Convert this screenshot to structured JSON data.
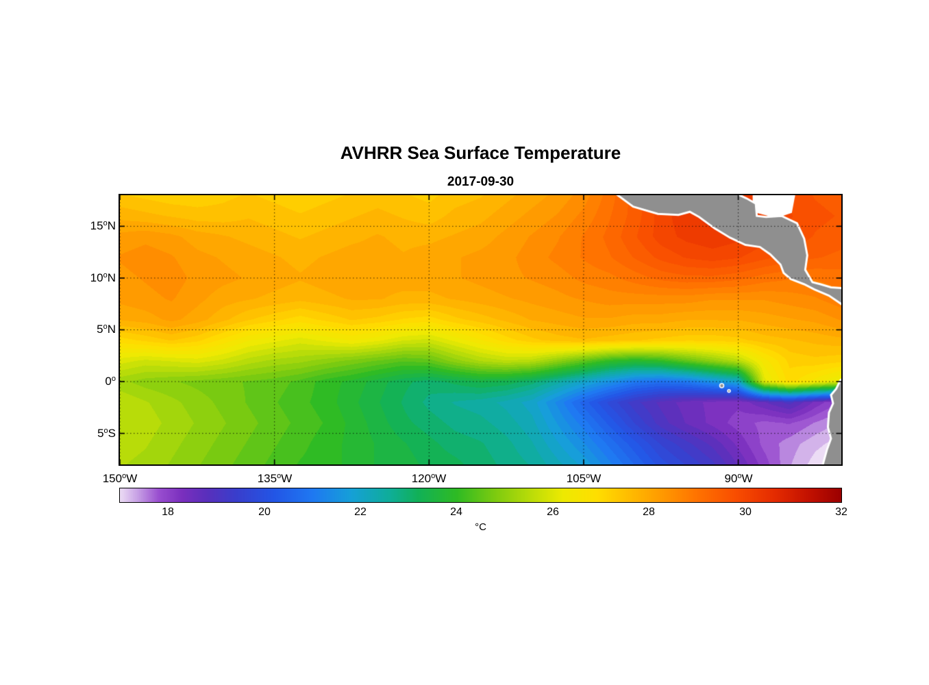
{
  "chart_data": {
    "type": "heatmap",
    "title": "AVHRR Sea Surface Temperature",
    "subtitle": "2017-09-30",
    "colorbar_label": "°C",
    "degree_glyph": "o",
    "lon_range": [
      -150,
      -80
    ],
    "lat_range": [
      -8,
      18
    ],
    "value_range": [
      17,
      32
    ],
    "x_ticks": [
      {
        "num": "150",
        "hem": "W",
        "lon": -150
      },
      {
        "num": "135",
        "hem": "W",
        "lon": -135
      },
      {
        "num": "120",
        "hem": "W",
        "lon": -120
      },
      {
        "num": "105",
        "hem": "W",
        "lon": -105
      },
      {
        "num": "90",
        "hem": "W",
        "lon": -90
      }
    ],
    "y_ticks": [
      {
        "num": "15",
        "hem": "N",
        "lat": 15
      },
      {
        "num": "10",
        "hem": "N",
        "lat": 10
      },
      {
        "num": "5",
        "hem": "N",
        "lat": 5
      },
      {
        "num": "0",
        "hem": "",
        "lat": 0
      },
      {
        "num": "5",
        "hem": "S",
        "lat": -5
      }
    ],
    "colorbar_ticks": [
      "18",
      "20",
      "22",
      "24",
      "26",
      "28",
      "30",
      "32"
    ],
    "colormap": [
      [
        17.0,
        "#ecdcf5"
      ],
      [
        17.35,
        "#c9a3e6"
      ],
      [
        17.8,
        "#9a4fd0"
      ],
      [
        18.3,
        "#7a2fbe"
      ],
      [
        18.8,
        "#5a30bc"
      ],
      [
        19.4,
        "#3a3ecc"
      ],
      [
        20.2,
        "#2356e6"
      ],
      [
        21.0,
        "#1f79f2"
      ],
      [
        21.8,
        "#16a0d8"
      ],
      [
        22.6,
        "#0fae9a"
      ],
      [
        23.2,
        "#12b158"
      ],
      [
        24.0,
        "#2fbb24"
      ],
      [
        24.8,
        "#7ecb10"
      ],
      [
        25.6,
        "#c0de08"
      ],
      [
        26.2,
        "#eeea02"
      ],
      [
        26.9,
        "#ffdf00"
      ],
      [
        27.6,
        "#ffbc00"
      ],
      [
        28.3,
        "#ff9800"
      ],
      [
        29.0,
        "#ff7300"
      ],
      [
        29.8,
        "#f94e00"
      ],
      [
        30.6,
        "#e52c00"
      ],
      [
        31.3,
        "#c41200"
      ],
      [
        32.0,
        "#9b0000"
      ]
    ],
    "grid": {
      "lats": [
        18,
        16,
        14,
        12,
        10,
        8,
        6,
        4,
        2,
        0,
        -2,
        -4,
        -6,
        -8
      ],
      "lons": [
        -150,
        -147.5,
        -145,
        -142.5,
        -140,
        -137.5,
        -135,
        -132.5,
        -130,
        -127.5,
        -125,
        -122.5,
        -120,
        -117.5,
        -115,
        -112.5,
        -110,
        -107.5,
        -105,
        -102.5,
        -100,
        -97.5,
        -95,
        -92.5,
        -90,
        -87.5,
        -85,
        -82.5,
        -80
      ],
      "values": [
        [
          27.4,
          27.3,
          27.2,
          27.2,
          27.3,
          27.4,
          27.3,
          27.2,
          27.3,
          27.4,
          27.5,
          27.4,
          27.3,
          27.5,
          27.6,
          27.8,
          28.0,
          28.2,
          28.5,
          29.0,
          29.5,
          30.0,
          30.2,
          30.5,
          30.3,
          30.0,
          29.8,
          29.6,
          29.5
        ],
        [
          27.8,
          27.7,
          27.6,
          27.5,
          27.5,
          27.6,
          27.5,
          27.4,
          27.5,
          27.6,
          27.7,
          27.6,
          27.5,
          27.7,
          27.8,
          28.0,
          28.2,
          28.4,
          28.7,
          29.1,
          29.5,
          30.0,
          30.3,
          30.5,
          30.4,
          30.1,
          29.9,
          29.7,
          29.6
        ],
        [
          28.2,
          28.3,
          28.2,
          28.0,
          27.9,
          27.8,
          27.7,
          27.6,
          27.7,
          27.8,
          27.9,
          27.8,
          27.8,
          27.9,
          28.0,
          28.2,
          28.4,
          28.6,
          28.9,
          29.2,
          29.6,
          30.0,
          30.2,
          30.3,
          30.2,
          30.0,
          29.8,
          29.6,
          29.5
        ],
        [
          28.4,
          28.5,
          28.4,
          28.2,
          28.1,
          28.0,
          27.9,
          27.8,
          27.9,
          28.0,
          28.0,
          27.9,
          28.0,
          28.1,
          28.2,
          28.3,
          28.5,
          28.7,
          28.9,
          29.1,
          29.4,
          29.7,
          29.9,
          30.0,
          29.9,
          29.7,
          29.5,
          29.4,
          29.3
        ],
        [
          28.3,
          28.4,
          28.5,
          28.3,
          28.2,
          28.1,
          28.0,
          27.9,
          28.0,
          28.1,
          28.0,
          28.0,
          28.0,
          28.1,
          28.2,
          28.3,
          28.4,
          28.5,
          28.7,
          28.8,
          29.0,
          29.2,
          29.3,
          29.3,
          29.2,
          29.0,
          28.9,
          28.9,
          29.0
        ],
        [
          28.2,
          28.3,
          28.4,
          28.2,
          28.0,
          27.9,
          27.8,
          27.7,
          27.8,
          27.9,
          27.9,
          27.8,
          27.8,
          27.9,
          28.0,
          28.1,
          28.2,
          28.3,
          28.4,
          28.5,
          28.5,
          28.5,
          28.5,
          28.4,
          28.4,
          28.4,
          28.5,
          28.6,
          28.8
        ],
        [
          27.9,
          28.0,
          28.2,
          28.0,
          27.7,
          27.4,
          27.2,
          27.0,
          27.2,
          27.4,
          27.3,
          27.1,
          27.0,
          27.3,
          27.5,
          27.7,
          27.9,
          28.0,
          28.1,
          28.1,
          28.0,
          28.0,
          27.9,
          27.9,
          27.9,
          28.0,
          28.1,
          28.2,
          28.4
        ],
        [
          27.0,
          27.2,
          27.4,
          27.2,
          26.8,
          26.4,
          26.2,
          26.0,
          26.2,
          26.4,
          26.2,
          25.9,
          25.8,
          26.2,
          26.6,
          27.0,
          27.3,
          27.5,
          27.6,
          27.5,
          27.4,
          27.3,
          27.2,
          27.2,
          27.3,
          27.5,
          27.6,
          27.7,
          27.8
        ],
        [
          26.0,
          25.8,
          25.9,
          26.0,
          25.8,
          25.5,
          25.3,
          25.2,
          25.0,
          24.8,
          24.6,
          24.4,
          24.5,
          25.0,
          25.4,
          25.6,
          25.5,
          25.0,
          24.5,
          24.0,
          23.8,
          24.0,
          24.5,
          25.0,
          25.5,
          26.5,
          27.2,
          27.3,
          27.2
        ],
        [
          25.2,
          25.0,
          24.9,
          24.8,
          24.7,
          24.6,
          24.5,
          24.3,
          24.0,
          23.8,
          23.5,
          23.2,
          23.0,
          23.2,
          23.4,
          23.3,
          23.0,
          22.5,
          22.0,
          21.5,
          21.0,
          20.8,
          21.0,
          21.5,
          22.0,
          26.0,
          27.0,
          26.5,
          26.0
        ],
        [
          25.6,
          25.4,
          25.2,
          25.0,
          24.8,
          24.6,
          24.4,
          24.2,
          24.0,
          23.7,
          23.4,
          23.1,
          22.8,
          22.6,
          22.5,
          22.3,
          22.0,
          21.3,
          20.5,
          19.8,
          19.2,
          18.8,
          18.5,
          18.3,
          18.2,
          18.6,
          19.0,
          18.3,
          17.8
        ],
        [
          25.6,
          25.5,
          25.3,
          25.1,
          24.9,
          24.7,
          24.5,
          24.3,
          24.1,
          23.8,
          23.5,
          23.2,
          23.0,
          22.8,
          22.7,
          22.5,
          22.2,
          21.6,
          21.0,
          20.3,
          19.6,
          19.0,
          18.6,
          18.3,
          18.0,
          17.8,
          17.9,
          17.6,
          17.3
        ],
        [
          25.5,
          25.4,
          25.2,
          25.0,
          24.8,
          24.6,
          24.4,
          24.2,
          24.0,
          23.8,
          23.6,
          23.4,
          23.2,
          23.0,
          22.9,
          22.7,
          22.4,
          21.9,
          21.4,
          20.8,
          20.2,
          19.6,
          19.2,
          18.8,
          18.3,
          17.8,
          17.5,
          17.2,
          17.0
        ],
        [
          25.4,
          25.3,
          25.1,
          24.9,
          24.7,
          24.5,
          24.3,
          24.1,
          24.0,
          23.8,
          23.6,
          23.5,
          23.3,
          23.2,
          23.0,
          22.8,
          22.6,
          22.2,
          21.8,
          21.2,
          20.6,
          20.0,
          19.6,
          19.2,
          18.6,
          18.0,
          17.4,
          17.0,
          16.8
        ]
      ]
    },
    "land": {
      "fill": "#8f8f8f",
      "coast": "#ffffff",
      "polygons": [
        {
          "name": "central-america",
          "points": [
            [
              -102.5,
              18.6
            ],
            [
              -100.2,
              16.9
            ],
            [
              -97.8,
              16.2
            ],
            [
              -95.8,
              16.1
            ],
            [
              -94.7,
              16.4
            ],
            [
              -93.8,
              15.9
            ],
            [
              -92.3,
              14.8
            ],
            [
              -90.8,
              13.9
            ],
            [
              -89.3,
              13.2
            ],
            [
              -87.9,
              13.0
            ],
            [
              -86.9,
              12.3
            ],
            [
              -85.9,
              11.3
            ],
            [
              -85.6,
              10.5
            ],
            [
              -84.9,
              9.9
            ],
            [
              -83.6,
              9.4
            ],
            [
              -82.6,
              8.9
            ],
            [
              -81.2,
              8.3
            ],
            [
              -80.3,
              7.7
            ],
            [
              -79.6,
              7.2
            ],
            [
              -79.6,
              9.0
            ],
            [
              -81.0,
              9.1
            ],
            [
              -82.0,
              9.4
            ],
            [
              -82.8,
              9.6
            ],
            [
              -83.5,
              10.8
            ],
            [
              -83.3,
              12.2
            ],
            [
              -83.6,
              13.8
            ],
            [
              -84.3,
              15.3
            ],
            [
              -85.8,
              16.0
            ],
            [
              -87.3,
              15.9
            ],
            [
              -88.2,
              16.0
            ],
            [
              -88.3,
              17.2
            ],
            [
              -89.2,
              17.7
            ],
            [
              -90.3,
              18.2
            ],
            [
              -95.0,
              18.6
            ]
          ]
        },
        {
          "name": "south-america",
          "points": [
            [
              -79.5,
              0.6
            ],
            [
              -80.1,
              0.1
            ],
            [
              -80.5,
              -0.7
            ],
            [
              -81.0,
              -1.3
            ],
            [
              -80.8,
              -2.1
            ],
            [
              -81.2,
              -3.0
            ],
            [
              -81.3,
              -4.4
            ],
            [
              -81.0,
              -5.5
            ],
            [
              -81.4,
              -6.6
            ],
            [
              -81.9,
              -8.4
            ],
            [
              -79.5,
              -8.4
            ]
          ]
        }
      ],
      "islands": [
        {
          "name": "galapagos",
          "lon": -91.6,
          "lat": -0.4,
          "r": 3
        },
        {
          "name": "galapagos-2",
          "lon": -90.9,
          "lat": -0.9,
          "r": 2
        }
      ],
      "missing_patches": [
        {
          "name": "caribbean-missing",
          "points": [
            [
              -88.6,
              18.4
            ],
            [
              -84.4,
              18.4
            ],
            [
              -84.8,
              16.3
            ],
            [
              -86.3,
              15.8
            ],
            [
              -88.6,
              16.4
            ]
          ]
        }
      ]
    },
    "grid_lines": {
      "style": "dotted",
      "color": "#000000"
    }
  }
}
